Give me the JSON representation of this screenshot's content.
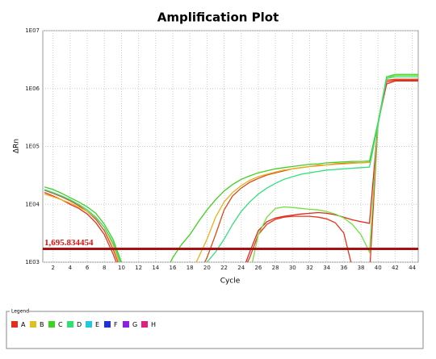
{
  "chart_data": {
    "type": "line",
    "title": "Amplification Plot",
    "x_label": "Cycle",
    "y_label": "ΔRn",
    "log_scale_y": true,
    "grid": true,
    "x": [
      1,
      2,
      3,
      4,
      5,
      6,
      7,
      8,
      9,
      10,
      11,
      12,
      13,
      14,
      15,
      16,
      17,
      18,
      19,
      20,
      21,
      22,
      23,
      24,
      25,
      26,
      27,
      28,
      29,
      30,
      31,
      32,
      33,
      34,
      35,
      36,
      37,
      38,
      39,
      40,
      41,
      42,
      43,
      44,
      45
    ],
    "xlim": [
      0.8,
      44.7
    ],
    "xticks": [
      2,
      4,
      6,
      8,
      10,
      12,
      14,
      16,
      18,
      20,
      22,
      24,
      26,
      28,
      30,
      32,
      34,
      36,
      38,
      40,
      42,
      44
    ],
    "ylim": [
      1000,
      10000000
    ],
    "yticks": [
      {
        "value": 1000,
        "label": "1E03"
      },
      {
        "value": 10000,
        "label": "1E04"
      },
      {
        "value": 100000,
        "label": "1E05"
      },
      {
        "value": 1000000,
        "label": "1E06"
      },
      {
        "value": 10000000,
        "label": "1E07"
      }
    ],
    "threshold": {
      "value": 1695.834454,
      "label": "1,695.834454",
      "color": "#a51010",
      "label_color": "#e01010"
    },
    "series": [
      {
        "color": "#e8341c",
        "values": [
          16000,
          14000,
          12000,
          10000,
          8500,
          6800,
          4800,
          3000,
          1400,
          600,
          null,
          null,
          null,
          null,
          null,
          null,
          null,
          null,
          null,
          null,
          null,
          null,
          null,
          600,
          1200,
          3000,
          4500,
          5500,
          6000,
          6200,
          6200,
          6200,
          6000,
          5600,
          4800,
          3200,
          800,
          600,
          600,
          250000,
          1300000,
          1400000,
          1400000,
          1400000,
          1400000
        ]
      },
      {
        "color": "#d84a18",
        "values": [
          17500,
          15500,
          13500,
          11500,
          9500,
          7500,
          5500,
          3500,
          1700,
          700,
          null,
          null,
          null,
          null,
          null,
          null,
          null,
          null,
          600,
          1200,
          3000,
          8000,
          14000,
          19000,
          24000,
          28000,
          32000,
          35000,
          38000,
          41000,
          43000,
          45000,
          47000,
          48000,
          50000,
          51000,
          52000,
          52000,
          53000,
          250000,
          1400000,
          1450000,
          1450000,
          1450000,
          1450000
        ]
      },
      {
        "color": "#e02818",
        "values": [
          null,
          null,
          null,
          null,
          null,
          null,
          null,
          null,
          null,
          null,
          null,
          null,
          null,
          null,
          null,
          null,
          null,
          null,
          null,
          null,
          null,
          null,
          null,
          600,
          1500,
          3500,
          5000,
          5800,
          6200,
          6500,
          6800,
          7000,
          7200,
          7000,
          6600,
          6000,
          5400,
          5000,
          4700,
          250000,
          1200000,
          1350000,
          1350000,
          1350000,
          1350000
        ]
      },
      {
        "color": "#e8b020",
        "values": [
          15000,
          13500,
          12000,
          10500,
          9000,
          7500,
          5800,
          4000,
          2000,
          800,
          null,
          null,
          null,
          null,
          null,
          null,
          null,
          600,
          1200,
          2500,
          6000,
          11000,
          16000,
          21000,
          26000,
          30000,
          33000,
          36000,
          39000,
          41000,
          43000,
          45000,
          46000,
          48000,
          49000,
          50000,
          51000,
          52000,
          53000,
          230000,
          1500000,
          1600000,
          1600000,
          1600000,
          1600000
        ]
      },
      {
        "color": "#40d020",
        "values": [
          20000,
          18000,
          15500,
          13000,
          11000,
          9000,
          7000,
          4500,
          2500,
          1000,
          600,
          null,
          null,
          null,
          600,
          1200,
          2000,
          3000,
          5000,
          8000,
          12000,
          17000,
          22000,
          27000,
          31000,
          35000,
          38000,
          41000,
          43000,
          45000,
          47000,
          49000,
          50000,
          52000,
          53000,
          54000,
          55000,
          55000,
          56000,
          260000,
          1600000,
          1750000,
          1750000,
          1750000,
          1750000
        ]
      },
      {
        "color": "#70e040",
        "values": [
          null,
          null,
          null,
          null,
          null,
          null,
          null,
          null,
          null,
          null,
          null,
          null,
          null,
          null,
          null,
          null,
          null,
          null,
          null,
          null,
          null,
          null,
          null,
          null,
          600,
          3000,
          6000,
          8500,
          9000,
          8800,
          8500,
          8200,
          8000,
          7500,
          6800,
          5800,
          4500,
          3000,
          1500,
          240000,
          1500000,
          1700000,
          1700000,
          1700000,
          1700000
        ]
      },
      {
        "color": "#30e080",
        "values": [
          18000,
          16000,
          14000,
          12000,
          10000,
          8000,
          6000,
          4000,
          2200,
          900,
          null,
          null,
          null,
          null,
          null,
          null,
          null,
          null,
          600,
          1000,
          1500,
          2500,
          4500,
          7500,
          11000,
          15000,
          19000,
          23000,
          27000,
          30000,
          33000,
          35000,
          37000,
          39000,
          40000,
          41000,
          42000,
          43000,
          44000,
          240000,
          1500000,
          1600000,
          1600000,
          1600000,
          1600000
        ]
      }
    ],
    "legend": {
      "title": "Legend",
      "items": [
        {
          "name": "A",
          "color": "#e0301c"
        },
        {
          "name": "B",
          "color": "#e0c020"
        },
        {
          "name": "C",
          "color": "#40d020"
        },
        {
          "name": "D",
          "color": "#30e070"
        },
        {
          "name": "E",
          "color": "#20c8e0"
        },
        {
          "name": "F",
          "color": "#2030e0"
        },
        {
          "name": "G",
          "color": "#9020e0"
        },
        {
          "name": "H",
          "color": "#e02080"
        }
      ]
    }
  }
}
